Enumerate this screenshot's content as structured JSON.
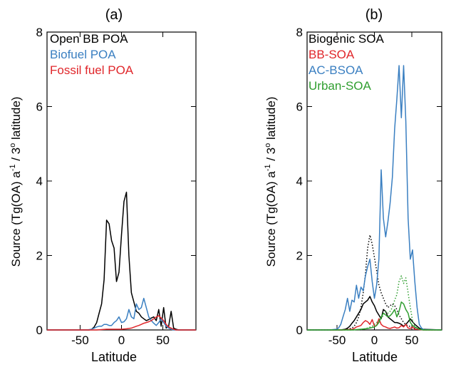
{
  "chart_data": [
    {
      "type": "line",
      "title": "(a)",
      "xlabel": "Latitude",
      "ylabel": "Source (Tg(OA) a^-1 / 3° latitude)",
      "xlim": [
        -90,
        90
      ],
      "ylim": [
        0,
        8
      ],
      "xticks": [
        -50,
        0,
        50
      ],
      "yticks": [
        0,
        2,
        4,
        6,
        8
      ],
      "legend_position": "top-left",
      "series": [
        {
          "name": "Open BB POA",
          "color": "#000000",
          "style": "solid",
          "x": [
            -90,
            -57,
            -54,
            -51,
            -48,
            -45,
            -42,
            -39,
            -36,
            -33,
            -30,
            -27,
            -24,
            -21,
            -18,
            -15,
            -12,
            -9,
            -6,
            -3,
            0,
            3,
            6,
            9,
            12,
            15,
            18,
            21,
            24,
            27,
            30,
            33,
            36,
            39,
            42,
            45,
            48,
            51,
            54,
            57,
            60,
            63,
            66,
            69,
            90
          ],
          "y": [
            0,
            0,
            0,
            0,
            0,
            0,
            0,
            0,
            0.02,
            0.08,
            0.2,
            0.45,
            0.7,
            1.35,
            2.95,
            2.85,
            2.4,
            2.2,
            1.3,
            1.55,
            2.55,
            3.45,
            3.7,
            2.0,
            1.0,
            0.75,
            0.5,
            0.45,
            0.35,
            0.3,
            0.25,
            0.28,
            0.32,
            0.35,
            0.25,
            0.55,
            0.1,
            0.6,
            0.05,
            0.1,
            0.5,
            0.05,
            0.02,
            0,
            0
          ]
        },
        {
          "name": "Biofuel POA",
          "color": "#3a7fc1",
          "style": "solid",
          "x": [
            -90,
            -48,
            -42,
            -36,
            -33,
            -30,
            -27,
            -24,
            -21,
            -18,
            -15,
            -12,
            -9,
            -6,
            -3,
            0,
            3,
            6,
            9,
            12,
            15,
            18,
            21,
            24,
            27,
            30,
            33,
            36,
            39,
            42,
            45,
            48,
            51,
            54,
            57,
            60,
            63,
            66,
            90
          ],
          "y": [
            0,
            0,
            0,
            0.02,
            0.05,
            0.08,
            0.1,
            0.1,
            0.15,
            0.15,
            0.12,
            0.12,
            0.2,
            0.25,
            0.35,
            0.2,
            0.22,
            0.3,
            0.55,
            0.35,
            0.3,
            0.7,
            0.55,
            0.6,
            0.85,
            0.6,
            0.35,
            0.25,
            0.18,
            0.12,
            0.2,
            0.3,
            0.2,
            0.1,
            0.05,
            0.02,
            0,
            0,
            0
          ]
        },
        {
          "name": "Fossil fuel POA",
          "color": "#e0262a",
          "style": "solid",
          "x": [
            -90,
            -30,
            -24,
            -18,
            -12,
            -6,
            0,
            6,
            12,
            18,
            21,
            24,
            27,
            30,
            33,
            36,
            39,
            42,
            45,
            48,
            51,
            54,
            57,
            60,
            63,
            66,
            90
          ],
          "y": [
            0,
            0,
            0.01,
            0.02,
            0.02,
            0.02,
            0.02,
            0.03,
            0.05,
            0.1,
            0.12,
            0.15,
            0.18,
            0.2,
            0.22,
            0.25,
            0.3,
            0.35,
            0.38,
            0.32,
            0.25,
            0.15,
            0.08,
            0.05,
            0.02,
            0,
            0
          ]
        }
      ]
    },
    {
      "type": "line",
      "title": "(b)",
      "xlabel": "Latitude",
      "ylabel": "Source (Tg(OA) a^-1 / 3° latitude)",
      "xlim": [
        -90,
        90
      ],
      "ylim": [
        0,
        8
      ],
      "xticks": [
        -50,
        0,
        50
      ],
      "yticks": [
        0,
        2,
        4,
        6,
        8
      ],
      "legend_position": "top-left",
      "series": [
        {
          "name": "Biogenic SOA",
          "color": "#000000",
          "style": "solid",
          "x": [
            -90,
            -45,
            -42,
            -39,
            -36,
            -33,
            -30,
            -27,
            -24,
            -21,
            -18,
            -15,
            -12,
            -9,
            -6,
            -3,
            0,
            3,
            6,
            9,
            12,
            15,
            18,
            21,
            24,
            27,
            30,
            33,
            36,
            39,
            42,
            45,
            48,
            51,
            54,
            57,
            60,
            63,
            90
          ],
          "y": [
            0,
            0,
            0.01,
            0.02,
            0.05,
            0.1,
            0.18,
            0.25,
            0.35,
            0.45,
            0.55,
            0.7,
            0.75,
            0.8,
            0.9,
            0.75,
            0.65,
            0.5,
            0.4,
            0.3,
            0.55,
            0.5,
            0.35,
            0.3,
            0.25,
            0.2,
            0.2,
            0.18,
            0.15,
            0.1,
            0.15,
            0.22,
            0.3,
            0.22,
            0.15,
            0.1,
            0.05,
            0.02,
            0
          ]
        },
        {
          "name": "",
          "color": "#000000",
          "style": "dotted",
          "x": [
            -90,
            -42,
            -36,
            -30,
            -27,
            -24,
            -21,
            -18,
            -15,
            -12,
            -9,
            -6,
            -3,
            0,
            3,
            6,
            9,
            12,
            15,
            18,
            21,
            24,
            27,
            30,
            33,
            36,
            39,
            42,
            45,
            48,
            51,
            54,
            57,
            60,
            66,
            90
          ],
          "y": [
            0,
            0,
            0.02,
            0.05,
            0.1,
            0.2,
            0.35,
            0.6,
            1.0,
            1.5,
            2.2,
            2.55,
            2.3,
            1.95,
            1.6,
            1.2,
            1.0,
            0.85,
            0.7,
            0.6,
            0.65,
            0.7,
            0.65,
            0.55,
            0.4,
            0.3,
            0.2,
            0.15,
            0.1,
            0.1,
            0.08,
            0.05,
            0.03,
            0.02,
            0,
            0
          ]
        },
        {
          "name": "BB-SOA",
          "color": "#e0262a",
          "style": "solid",
          "x": [
            -90,
            -42,
            -36,
            -30,
            -27,
            -24,
            -21,
            -18,
            -15,
            -12,
            -9,
            -6,
            -3,
            0,
            3,
            6,
            9,
            12,
            15,
            18,
            21,
            24,
            27,
            30,
            33,
            36,
            39,
            42,
            45,
            48,
            51,
            54,
            57,
            60,
            66,
            90
          ],
          "y": [
            0,
            0,
            0.01,
            0.02,
            0.04,
            0.08,
            0.1,
            0.12,
            0.2,
            0.25,
            0.22,
            0.15,
            0.28,
            0.1,
            0.12,
            0.3,
            0.15,
            0.1,
            0.08,
            0.05,
            0.04,
            0.06,
            0.08,
            0.05,
            0.06,
            0.12,
            0.08,
            0.15,
            0.05,
            0.04,
            0.08,
            0.02,
            0.02,
            0.01,
            0,
            0
          ]
        },
        {
          "name": "AC-BSOA",
          "color": "#3a7fc1",
          "style": "solid",
          "x": [
            -90,
            -60,
            -51,
            -48,
            -45,
            -42,
            -39,
            -36,
            -33,
            -30,
            -27,
            -24,
            -21,
            -18,
            -15,
            -12,
            -9,
            -6,
            -3,
            0,
            3,
            6,
            9,
            12,
            15,
            18,
            21,
            24,
            27,
            30,
            33,
            36,
            39,
            42,
            45,
            48,
            51,
            54,
            57,
            60,
            63,
            66,
            90
          ],
          "y": [
            0,
            0,
            0.02,
            0.05,
            0.15,
            0.35,
            0.55,
            0.85,
            0.5,
            0.8,
            0.75,
            1.2,
            0.85,
            1.15,
            1.05,
            1.45,
            1.7,
            1.9,
            1.3,
            0.85,
            1.2,
            1.9,
            4.3,
            3.0,
            2.5,
            2.9,
            3.4,
            4.1,
            5.4,
            6.2,
            7.1,
            5.7,
            7.1,
            5.6,
            3.0,
            1.9,
            2.15,
            1.3,
            0.6,
            0.15,
            0.05,
            0.01,
            0
          ]
        },
        {
          "name": "Urban-SOA",
          "color": "#2f9e2f",
          "style": "solid",
          "x": [
            -90,
            -30,
            -24,
            -18,
            -12,
            -6,
            0,
            3,
            6,
            9,
            12,
            15,
            18,
            21,
            24,
            27,
            30,
            33,
            36,
            39,
            42,
            45,
            48,
            51,
            54,
            57,
            60,
            66,
            90
          ],
          "y": [
            0,
            0,
            0.01,
            0.02,
            0.03,
            0.05,
            0.08,
            0.12,
            0.2,
            0.35,
            0.45,
            0.4,
            0.35,
            0.38,
            0.45,
            0.55,
            0.35,
            0.5,
            0.75,
            0.7,
            0.55,
            0.45,
            0.2,
            0.12,
            0.08,
            0.05,
            0.02,
            0,
            0
          ]
        },
        {
          "name": "",
          "color": "#2f9e2f",
          "style": "dotted",
          "x": [
            -90,
            -21,
            -15,
            -9,
            -3,
            0,
            3,
            6,
            9,
            12,
            15,
            18,
            21,
            24,
            27,
            30,
            33,
            36,
            39,
            42,
            45,
            48,
            51,
            54,
            57,
            60,
            66,
            90
          ],
          "y": [
            0,
            0,
            0.02,
            0.05,
            0.1,
            0.15,
            0.2,
            0.25,
            0.3,
            0.4,
            0.5,
            0.45,
            0.5,
            0.6,
            0.8,
            0.95,
            1.3,
            1.45,
            1.25,
            1.4,
            1.0,
            0.6,
            0.25,
            0.1,
            0.05,
            0.02,
            0,
            0
          ]
        }
      ]
    }
  ]
}
